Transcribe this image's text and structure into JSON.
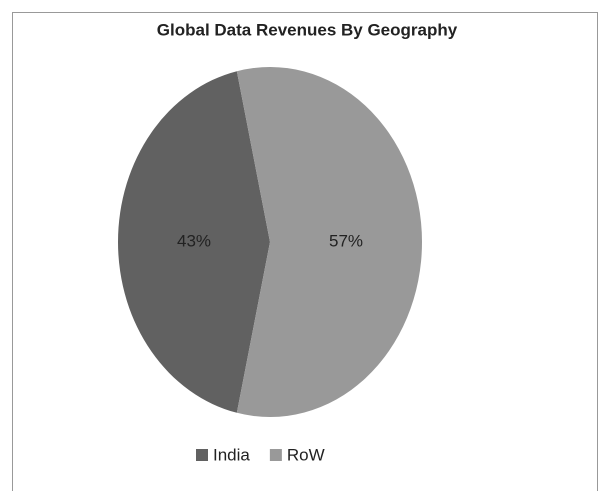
{
  "chart_data": {
    "type": "pie",
    "title": "Global Data Revenues By Geography",
    "categories": [
      "India",
      "RoW"
    ],
    "values": [
      43,
      57
    ],
    "value_labels": [
      "43%",
      "57%"
    ],
    "colors": [
      "#616161",
      "#999999"
    ],
    "legend": "bottom"
  }
}
